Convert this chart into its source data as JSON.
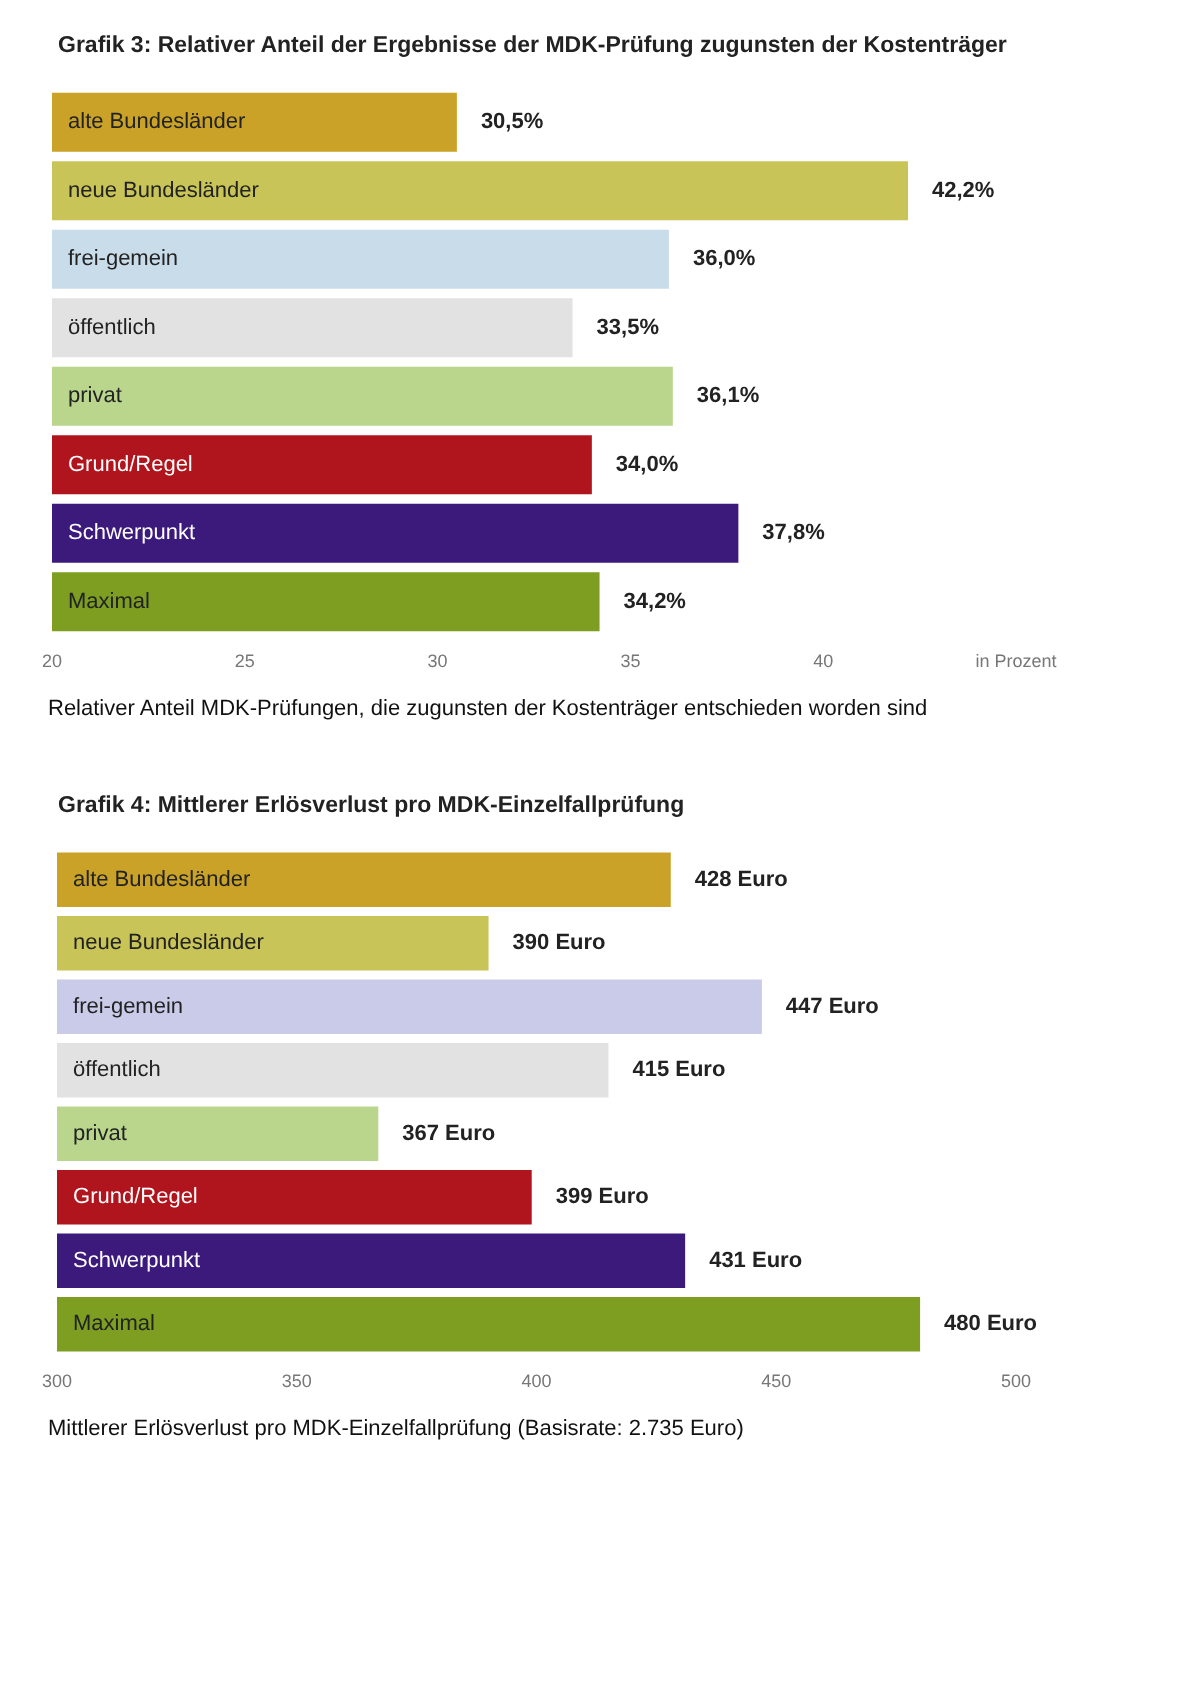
{
  "chart_data": [
    {
      "type": "bar",
      "orientation": "horizontal",
      "title": "Grafik 3: Relativer Anteil der Ergebnisse der MDK-Prüfung zugunsten der Kostenträger",
      "categories": [
        "alte Bundesländer",
        "neue Bundesländer",
        "frei-gemein",
        "öffentlich",
        "privat",
        "Grund/Regel",
        "Schwerpunkt",
        "Maximal"
      ],
      "values": [
        30.5,
        42.2,
        36.0,
        33.5,
        36.1,
        34.0,
        37.8,
        34.2
      ],
      "value_labels": [
        "30,5%",
        "42,2%",
        "36,0%",
        "33,5%",
        "36,1%",
        "34,0%",
        "37,8%",
        "34,2%"
      ],
      "colors": [
        "#c9a227",
        "#c8c458",
        "#c8dcea",
        "#e2e2e2",
        "#b9d68c",
        "#b0141c",
        "#3b1a7c",
        "#7e9e22"
      ],
      "xlim": [
        20,
        45
      ],
      "xticks": [
        20,
        25,
        30,
        35,
        40,
        {
          "value": 45,
          "label": "in Prozent"
        }
      ],
      "annotations": [
        "Relativer Anteil MDK-Prüfungen, die zugunsten der Kostenträger entschieden worden sind"
      ]
    },
    {
      "type": "bar",
      "orientation": "horizontal",
      "title": "Grafik 4: Mittlerer Erlösverlust pro MDK-Einzelfallprüfung",
      "categories": [
        "alte Bundesländer",
        "neue Bundesländer",
        "frei-gemein",
        "öffentlich",
        "privat",
        "Grund/Regel",
        "Schwerpunkt",
        "Maximal"
      ],
      "values": [
        428,
        390,
        447,
        415,
        367,
        399,
        431,
        480
      ],
      "value_labels": [
        "428 Euro",
        "390 Euro",
        "447 Euro",
        "415 Euro",
        "367 Euro",
        "399 Euro",
        "431 Euro",
        "480 Euro"
      ],
      "colors": [
        "#c9a227",
        "#c8c458",
        "#c9cbe8",
        "#e2e2e2",
        "#b9d68c",
        "#b0141c",
        "#3b1a7c",
        "#7e9e22"
      ],
      "xlim": [
        300,
        500
      ],
      "xticks": [
        300,
        350,
        400,
        450,
        500
      ],
      "annotations": [
        "Mittlerer Erlösverlust pro MDK-Einzelfallprüfung (Basisrate: 2.735 Euro)"
      ]
    }
  ]
}
